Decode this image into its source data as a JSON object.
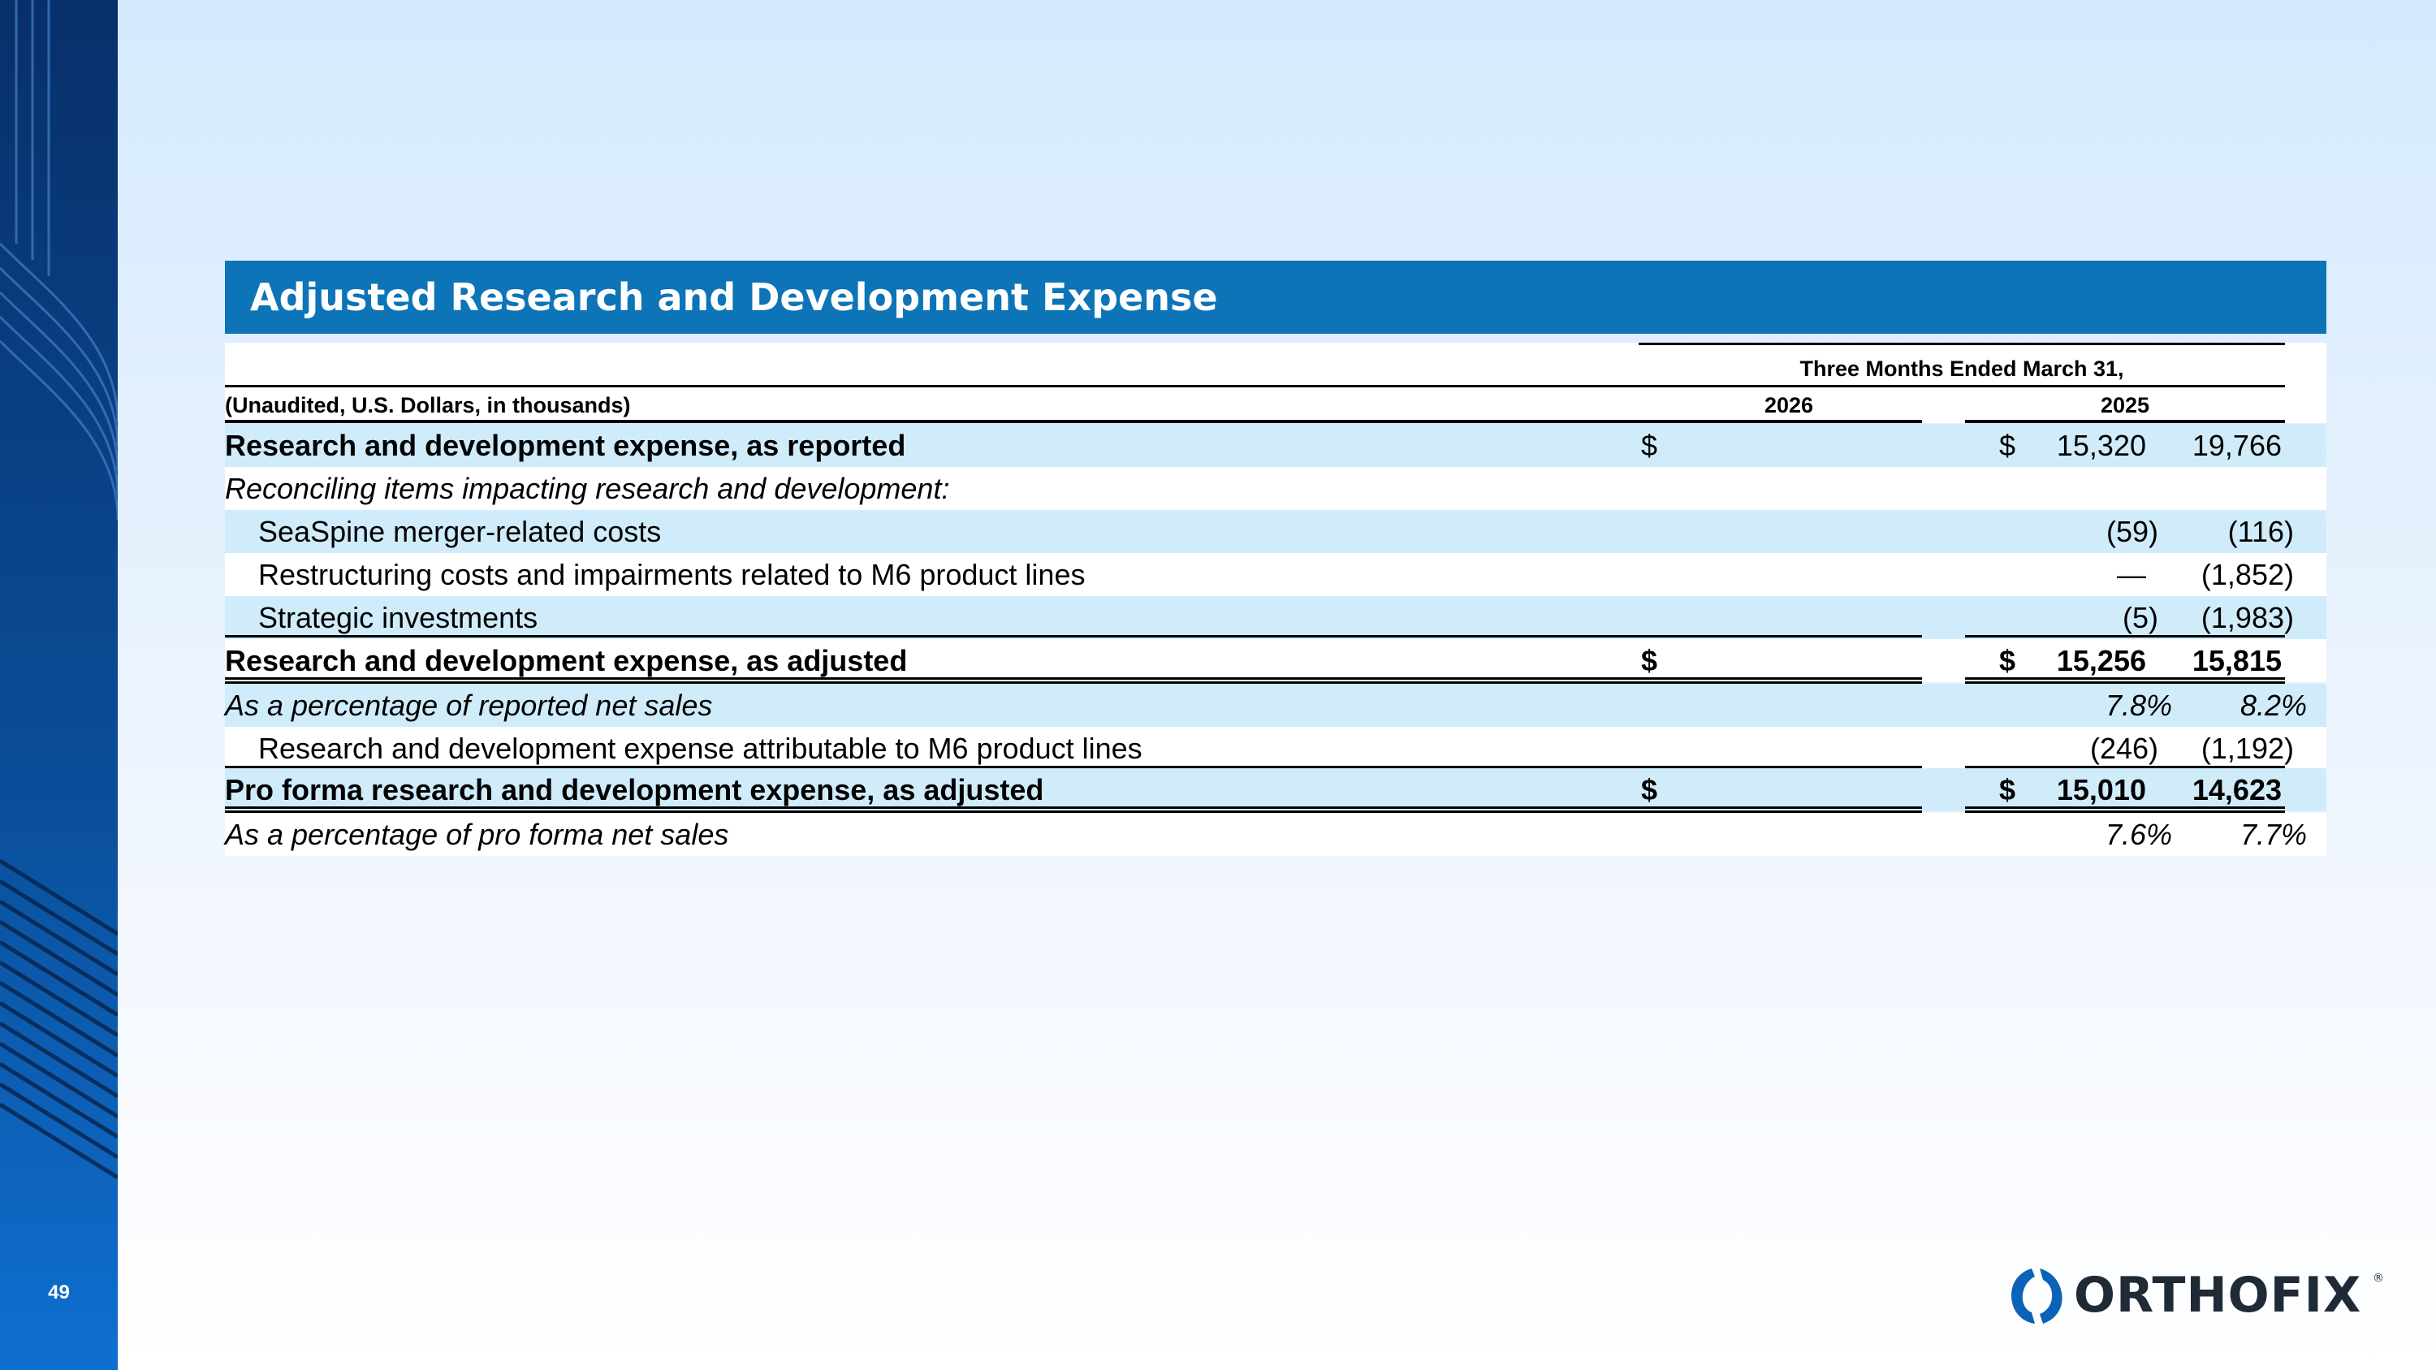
{
  "slide": {
    "title": "Adjusted Research and Development Expense",
    "page_number": "49",
    "logo_text": "ORTHOFIX",
    "logo_reg": "®"
  },
  "table": {
    "units_note": "(Unaudited, U.S. Dollars, in thousands)",
    "period_header": "Three Months Ended March 31,",
    "col1_header": "2026",
    "col2_header": "2025",
    "currency_symbol": "$",
    "rows": [
      {
        "label": "Research and development expense, as reported",
        "col1": "15,320",
        "col2": "19,766"
      },
      {
        "label": "Reconciling items impacting research and development:"
      },
      {
        "label": "SeaSpine merger-related costs",
        "col1": "(59)",
        "col2": "(116)"
      },
      {
        "label": "Restructuring costs and impairments related to M6 product lines",
        "col1": "—",
        "col2": "(1,852)"
      },
      {
        "label": "Strategic investments",
        "col1": "(5)",
        "col2": "(1,983)"
      },
      {
        "label": "Research and development expense, as adjusted",
        "col1": "15,256",
        "col2": "15,815"
      },
      {
        "label": "As a percentage of reported net sales",
        "col1": "7.8%",
        "col2": "8.2%"
      },
      {
        "label": "Research and development expense attributable to M6 product lines",
        "col1": "(246)",
        "col2": "(1,192)"
      },
      {
        "label": "Pro forma research and development expense, as adjusted",
        "col1": "15,010",
        "col2": "14,623"
      },
      {
        "label": "As a percentage of pro forma net sales",
        "col1": "7.6%",
        "col2": "7.7%"
      }
    ]
  },
  "colors": {
    "title_bar": "#0d74b8",
    "row_shade": "#d0ecfa",
    "left_band": "#0a4c96"
  }
}
